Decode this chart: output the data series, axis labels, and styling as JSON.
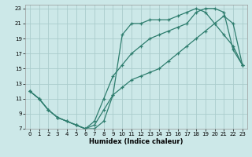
{
  "xlabel": "Humidex (Indice chaleur)",
  "bg_color": "#cce8e8",
  "grid_color": "#aacccc",
  "line_color": "#2e7d6e",
  "xlim": [
    -0.5,
    23.5
  ],
  "ylim": [
    7,
    23.5
  ],
  "xticks": [
    0,
    1,
    2,
    3,
    4,
    5,
    6,
    7,
    8,
    9,
    10,
    11,
    12,
    13,
    14,
    15,
    16,
    17,
    18,
    19,
    20,
    21,
    22,
    23
  ],
  "yticks": [
    7,
    9,
    11,
    13,
    15,
    17,
    19,
    21,
    23
  ],
  "line1_x": [
    0,
    1,
    2,
    3,
    4,
    5,
    6,
    7,
    8,
    9,
    10,
    11,
    12,
    13,
    14,
    15,
    16,
    17,
    18,
    19,
    20,
    21,
    22,
    23
  ],
  "line1_y": [
    12,
    11,
    9.5,
    8.5,
    8,
    7.5,
    7,
    7,
    8,
    11.5,
    19.5,
    21,
    21,
    21.5,
    21.5,
    21.5,
    22,
    22.5,
    23,
    22.5,
    21,
    19.5,
    18,
    15.5
  ],
  "line2_x": [
    0,
    1,
    2,
    3,
    5,
    6,
    7,
    8,
    9,
    10,
    11,
    12,
    13,
    14,
    15,
    16,
    17,
    18,
    19,
    20,
    21,
    22,
    23
  ],
  "line2_y": [
    12,
    11,
    9.5,
    8.5,
    7.5,
    7,
    8,
    11,
    14,
    15.5,
    17,
    18,
    19,
    19.5,
    20,
    20.5,
    21,
    22.5,
    23,
    23,
    22.5,
    17.5,
    15.5
  ],
  "line3_x": [
    0,
    1,
    2,
    3,
    4,
    5,
    6,
    7,
    8,
    9,
    10,
    11,
    12,
    13,
    14,
    15,
    16,
    17,
    18,
    19,
    20,
    21,
    22,
    23
  ],
  "line3_y": [
    12,
    11,
    9.5,
    8.5,
    8,
    7.5,
    7,
    7.5,
    9.5,
    11.5,
    12.5,
    13.5,
    14,
    14.5,
    15,
    16,
    17,
    18,
    19,
    20,
    21,
    22,
    21,
    15.5
  ]
}
